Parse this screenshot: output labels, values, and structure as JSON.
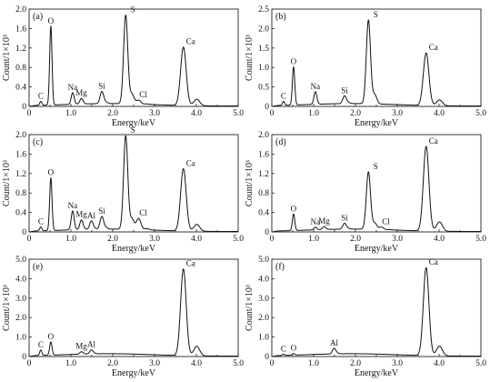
{
  "chart_data": [
    {
      "type": "line",
      "panel_label": "(a)",
      "xlabel": "Energy/keV",
      "ylabel": "Count/1×10³",
      "xlim": [
        0,
        5.0
      ],
      "ylim": [
        0,
        2.0
      ],
      "x_ticks": [
        "0",
        "1.0",
        "2.0",
        "3.0",
        "4.0",
        "5.0"
      ],
      "y_ticks": [
        "0",
        "0.4",
        "0.8",
        "1.2",
        "1.6",
        "2.0"
      ],
      "peaks": [
        {
          "element": "C",
          "energy": 0.28,
          "height": 0.08
        },
        {
          "element": "O",
          "energy": 0.52,
          "height": 1.62
        },
        {
          "element": "Na",
          "energy": 1.04,
          "height": 0.22
        },
        {
          "element": "Mg",
          "energy": 1.25,
          "height": 0.11
        },
        {
          "element": "Si",
          "energy": 1.74,
          "height": 0.25
        },
        {
          "element": "S",
          "energy": 2.31,
          "height": 1.82
        },
        {
          "element": "Cl",
          "energy": 2.62,
          "height": 0.08
        },
        {
          "element": "Ca",
          "energy": 3.69,
          "height": 1.2
        }
      ]
    },
    {
      "type": "line",
      "panel_label": "(b)",
      "xlabel": "Energy/keV",
      "ylabel": "Count/1×10³",
      "xlim": [
        0,
        5.0
      ],
      "ylim": [
        0,
        2.5
      ],
      "x_ticks": [
        "0",
        "1.0",
        "2.0",
        "3.0",
        "4.0",
        "5.0"
      ],
      "y_ticks": [
        "0",
        "0.5",
        "1.0",
        "1.5",
        "2.0",
        "2.5"
      ],
      "peaks": [
        {
          "element": "C",
          "energy": 0.28,
          "height": 0.1
        },
        {
          "element": "O",
          "energy": 0.52,
          "height": 0.98
        },
        {
          "element": "Na",
          "energy": 1.04,
          "height": 0.3
        },
        {
          "element": "Si",
          "energy": 1.74,
          "height": 0.2
        },
        {
          "element": "S",
          "energy": 2.31,
          "height": 2.15
        },
        {
          "element": "Ca",
          "energy": 3.69,
          "height": 1.35
        }
      ]
    },
    {
      "type": "line",
      "panel_label": "(c)",
      "xlabel": "Energy/keV",
      "ylabel": "Count/1×10³",
      "xlim": [
        0,
        5.0
      ],
      "ylim": [
        0,
        2.0
      ],
      "x_ticks": [
        "0",
        "1.0",
        "2.0",
        "3.0",
        "4.0",
        "5.0"
      ],
      "y_ticks": [
        "0",
        "0.4",
        "0.8",
        "1.2",
        "1.6",
        "2.0"
      ],
      "peaks": [
        {
          "element": "C",
          "energy": 0.28,
          "height": 0.08
        },
        {
          "element": "O",
          "energy": 0.52,
          "height": 1.08
        },
        {
          "element": "Na",
          "energy": 1.04,
          "height": 0.36
        },
        {
          "element": "Mg",
          "energy": 1.25,
          "height": 0.19
        },
        {
          "element": "Al",
          "energy": 1.49,
          "height": 0.17
        },
        {
          "element": "Si",
          "energy": 1.74,
          "height": 0.26
        },
        {
          "element": "S",
          "energy": 2.31,
          "height": 1.92
        },
        {
          "element": "Cl",
          "energy": 2.62,
          "height": 0.23
        },
        {
          "element": "Ca",
          "energy": 3.69,
          "height": 1.28
        }
      ]
    },
    {
      "type": "line",
      "panel_label": "(d)",
      "xlabel": "Energy/keV",
      "ylabel": "Count/1×10³",
      "xlim": [
        0,
        5.0
      ],
      "ylim": [
        0,
        2.0
      ],
      "x_ticks": [
        "0",
        "1.0",
        "2.0",
        "3.0",
        "4.0",
        "5.0"
      ],
      "y_ticks": [
        "0",
        "0.4",
        "0.8",
        "1.2",
        "1.6",
        "2.0"
      ],
      "peaks": [
        {
          "element": "O",
          "energy": 0.52,
          "height": 0.34
        },
        {
          "element": "Na",
          "energy": 1.04,
          "height": 0.05
        },
        {
          "element": "Mg",
          "energy": 1.25,
          "height": 0.06
        },
        {
          "element": "Si",
          "energy": 1.74,
          "height": 0.12
        },
        {
          "element": "S",
          "energy": 2.31,
          "height": 1.18
        },
        {
          "element": "Cl",
          "energy": 2.62,
          "height": 0.05
        },
        {
          "element": "Ca",
          "energy": 3.69,
          "height": 1.74
        }
      ]
    },
    {
      "type": "line",
      "panel_label": "(e)",
      "xlabel": "Energy/keV",
      "ylabel": "Count/1×10³",
      "xlim": [
        0,
        5.0
      ],
      "ylim": [
        0,
        5.0
      ],
      "x_ticks": [
        "0",
        "1.0",
        "2.0",
        "3.0",
        "4.0",
        "5.0"
      ],
      "y_ticks": [
        "0",
        "1.0",
        "2.0",
        "3.0",
        "4.0",
        "5.0"
      ],
      "peaks": [
        {
          "element": "C",
          "energy": 0.28,
          "height": 0.28
        },
        {
          "element": "O",
          "energy": 0.52,
          "height": 0.68
        },
        {
          "element": "Mg",
          "energy": 1.25,
          "height": 0.12
        },
        {
          "element": "Al",
          "energy": 1.49,
          "height": 0.2
        },
        {
          "element": "Ca",
          "energy": 3.69,
          "height": 4.45
        }
      ]
    },
    {
      "type": "line",
      "panel_label": "(f)",
      "xlabel": "Energy/keV",
      "ylabel": "Count/1×10³",
      "xlim": [
        0,
        5.0
      ],
      "ylim": [
        0,
        5.0
      ],
      "x_ticks": [
        "0",
        "1.0",
        "2.0",
        "3.0",
        "4.0",
        "5.0"
      ],
      "y_ticks": [
        "0",
        "1.0",
        "2.0",
        "3.0",
        "4.0",
        "5.0"
      ],
      "peaks": [
        {
          "element": "C",
          "energy": 0.28,
          "height": 0.06
        },
        {
          "element": "O",
          "energy": 0.52,
          "height": 0.08
        },
        {
          "element": "Al",
          "energy": 1.49,
          "height": 0.28
        },
        {
          "element": "Ca",
          "energy": 3.69,
          "height": 4.52
        }
      ]
    }
  ]
}
